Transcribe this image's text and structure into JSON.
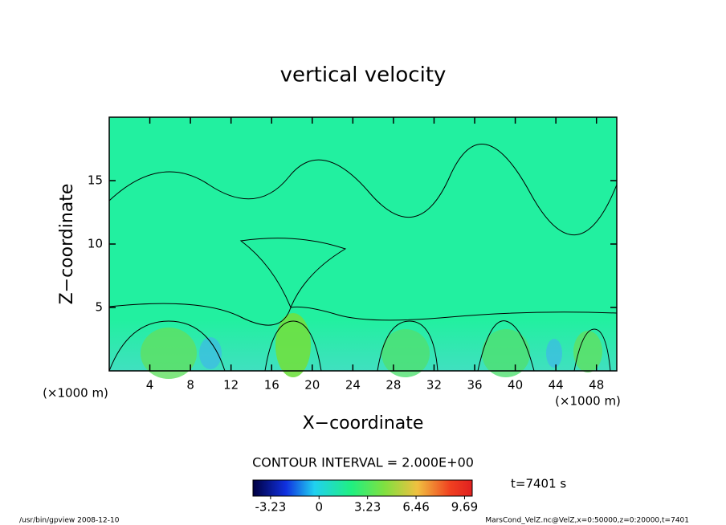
{
  "chart_data": {
    "type": "contour",
    "title": "vertical velocity",
    "x_label": "X−coordinate",
    "y_label": "Z−coordinate",
    "x_unit_label": "(×1000 m)",
    "y_unit_label": "(×1000 m)",
    "xlim": [
      0,
      50
    ],
    "xticks": [
      4,
      8,
      12,
      16,
      20,
      24,
      28,
      32,
      36,
      40,
      44,
      48
    ],
    "ylim": [
      0,
      20
    ],
    "yticks": [
      5,
      10,
      15
    ],
    "contour_interval": "CONTOUR INTERVAL = 2.000E+00",
    "time_label": "t=7401 s",
    "colorbar": {
      "lim": [
        -4.4,
        10.2
      ],
      "ticks": [
        -3.23,
        0,
        3.23,
        6.46,
        9.69
      ]
    },
    "footer_left": "/usr/bin/gpview  2008-12-10",
    "footer_right": "MarsCond_VelZ.nc@VelZ,x=0:50000,z=0:20000,t=7401"
  }
}
